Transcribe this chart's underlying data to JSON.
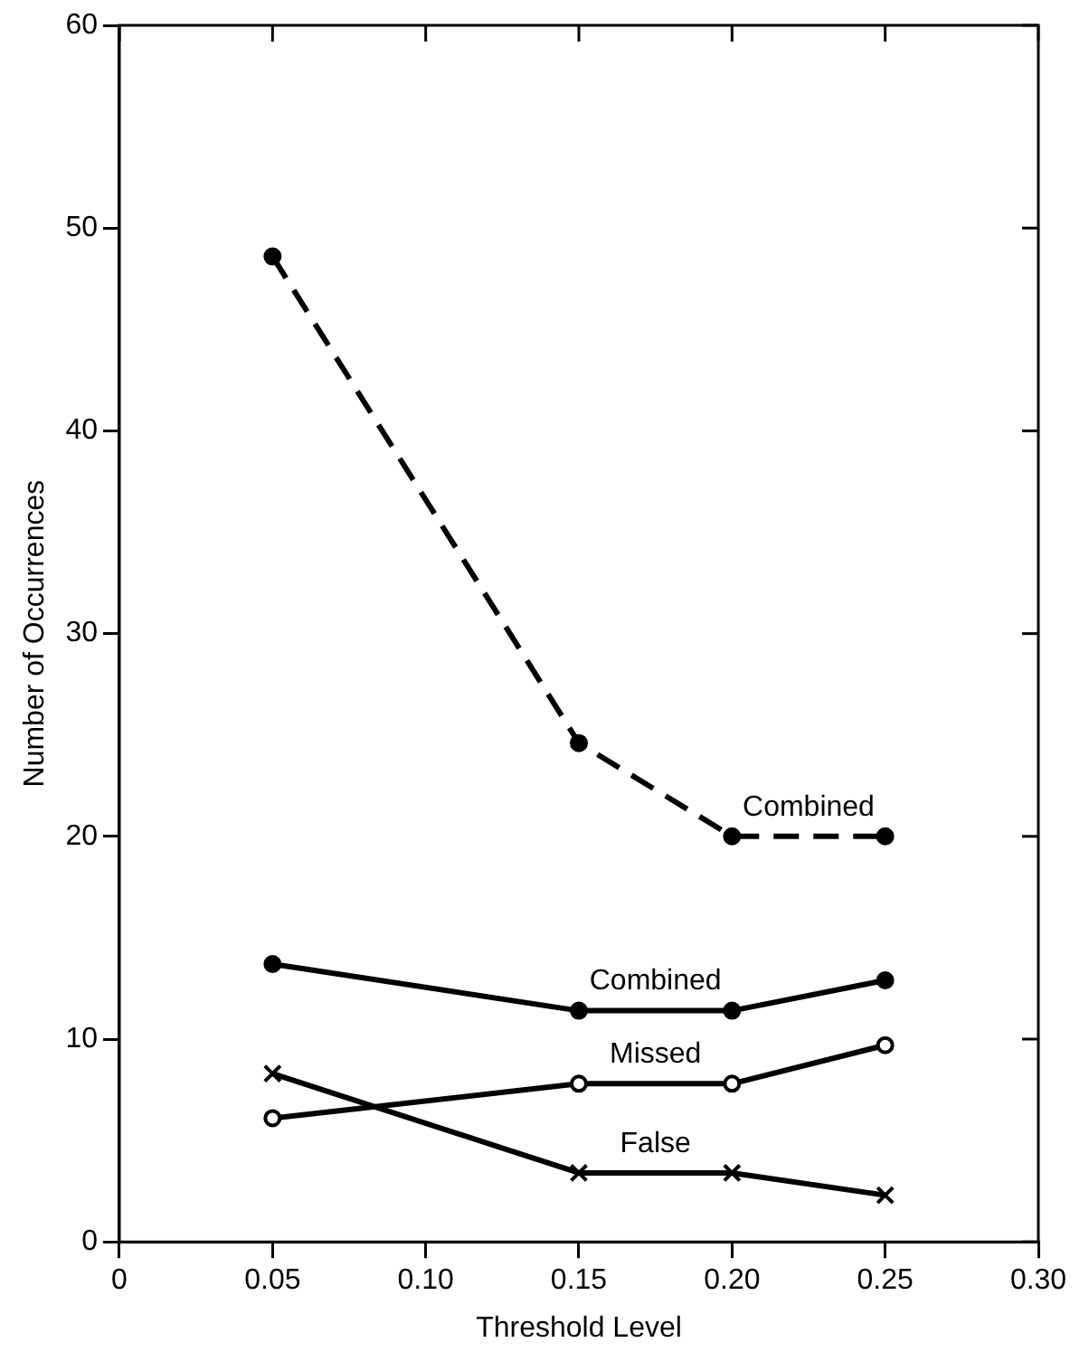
{
  "chart_data": {
    "type": "line",
    "xlabel": "Threshold Level",
    "ylabel": "Number of Occurrences",
    "x": [
      0.05,
      0.15,
      0.2,
      0.25
    ],
    "series": [
      {
        "name": "Combined",
        "color": "#000000",
        "values": [
          48.6,
          24.6,
          20,
          20
        ],
        "line_style": "dashed",
        "marker": "circle"
      },
      {
        "name": "Combined",
        "color": "#000000",
        "values": [
          13.7,
          11.4,
          11.4,
          12.9
        ],
        "line_style": "solid",
        "marker": "circle"
      },
      {
        "name": "Missed",
        "color": "#000000",
        "values": [
          6.1,
          7.8,
          7.8,
          9.7
        ],
        "line_style": "solid",
        "marker": "circle"
      },
      {
        "name": "False",
        "color": "#000000",
        "values": [
          8.3,
          3.4,
          3.4,
          2.3
        ],
        "line_style": "solid",
        "marker": "cross"
      }
    ],
    "xlim": [
      0,
      0.3
    ],
    "xticks": [
      0,
      0.05,
      {
        "value": 0.1,
        "label": "0.10"
      },
      0.15,
      {
        "value": 0.2,
        "label": "0.20"
      },
      0.25,
      {
        "value": 0.3,
        "label": "0.30"
      }
    ],
    "ylim": [
      0,
      60
    ],
    "yticks": [
      0,
      10,
      20,
      30,
      40,
      50,
      60
    ],
    "grid": false,
    "legend": false
  }
}
